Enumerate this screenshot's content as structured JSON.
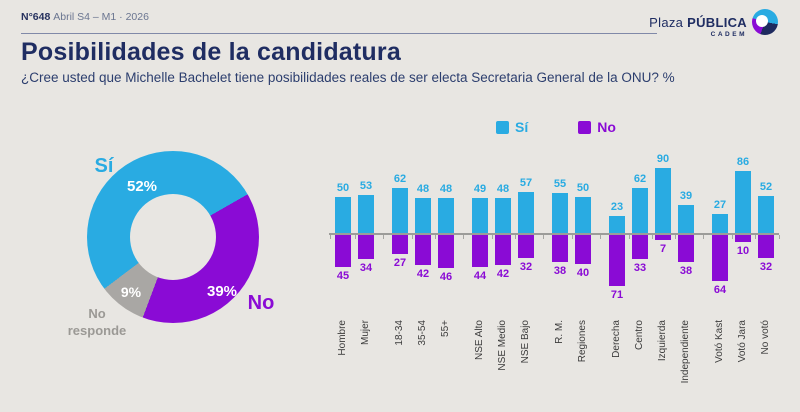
{
  "header": {
    "issue": "N°648",
    "period": "Abril S4 – M1 · 2026"
  },
  "brand": {
    "name_light": "Plaza",
    "name_bold": "PÚBLICA",
    "sub": "CADEM"
  },
  "title": "Posibilidades de la candidatura",
  "subtitle": "¿Cree usted que Michelle Bachelet tiene posibilidades reales de ser electa Secretaria General de la ONU? %",
  "legend": {
    "si": "Sí",
    "no": "No"
  },
  "colors": {
    "si_blue": "#29ABE2",
    "no_purple": "#8A0BD5",
    "no_responde_gray": "#A9A7A4",
    "navy": "#1F2D62",
    "background": "#E8E6E2"
  },
  "donut_labels": {
    "si": "Sí",
    "si_pct": "52%",
    "no": "No",
    "no_pct": "39%",
    "nr_pct": "9%",
    "nr_line1": "No",
    "nr_line2": "responde"
  },
  "chart_data": [
    {
      "type": "pie",
      "donut": true,
      "labels": [
        "Sí",
        "No",
        "No responde"
      ],
      "values": [
        52,
        39,
        9
      ],
      "unit": "%",
      "colors": [
        "#29ABE2",
        "#8A0BD5",
        "#A9A7A4"
      ],
      "start_angle_deg": 233,
      "legend_position": "none"
    },
    {
      "type": "bar",
      "subtype": "diverging-grouped",
      "categories": [
        "Hombre",
        "Mujer",
        "18-34",
        "35-54",
        "55+",
        "NSE Alto",
        "NSE Medio",
        "NSE Bajo",
        "R. M.",
        "Regiones",
        "Derecha",
        "Centro",
        "Izquierda",
        "Independiente",
        "Votó Kast",
        "Votó Jara",
        "No votó"
      ],
      "group_sizes": [
        2,
        3,
        3,
        2,
        4,
        3
      ],
      "series": [
        {
          "name": "Sí",
          "color": "#29ABE2",
          "direction": "up",
          "values": [
            50,
            53,
            62,
            48,
            48,
            49,
            48,
            57,
            55,
            50,
            23,
            62,
            90,
            39,
            27,
            86,
            52
          ]
        },
        {
          "name": "No",
          "color": "#8A0BD5",
          "direction": "down",
          "values": [
            45,
            34,
            27,
            42,
            46,
            44,
            42,
            32,
            38,
            40,
            71,
            33,
            7,
            38,
            64,
            10,
            32
          ]
        }
      ],
      "value_labels": true,
      "axis": "zero-baseline",
      "grid": false,
      "legend_position": "top"
    }
  ]
}
